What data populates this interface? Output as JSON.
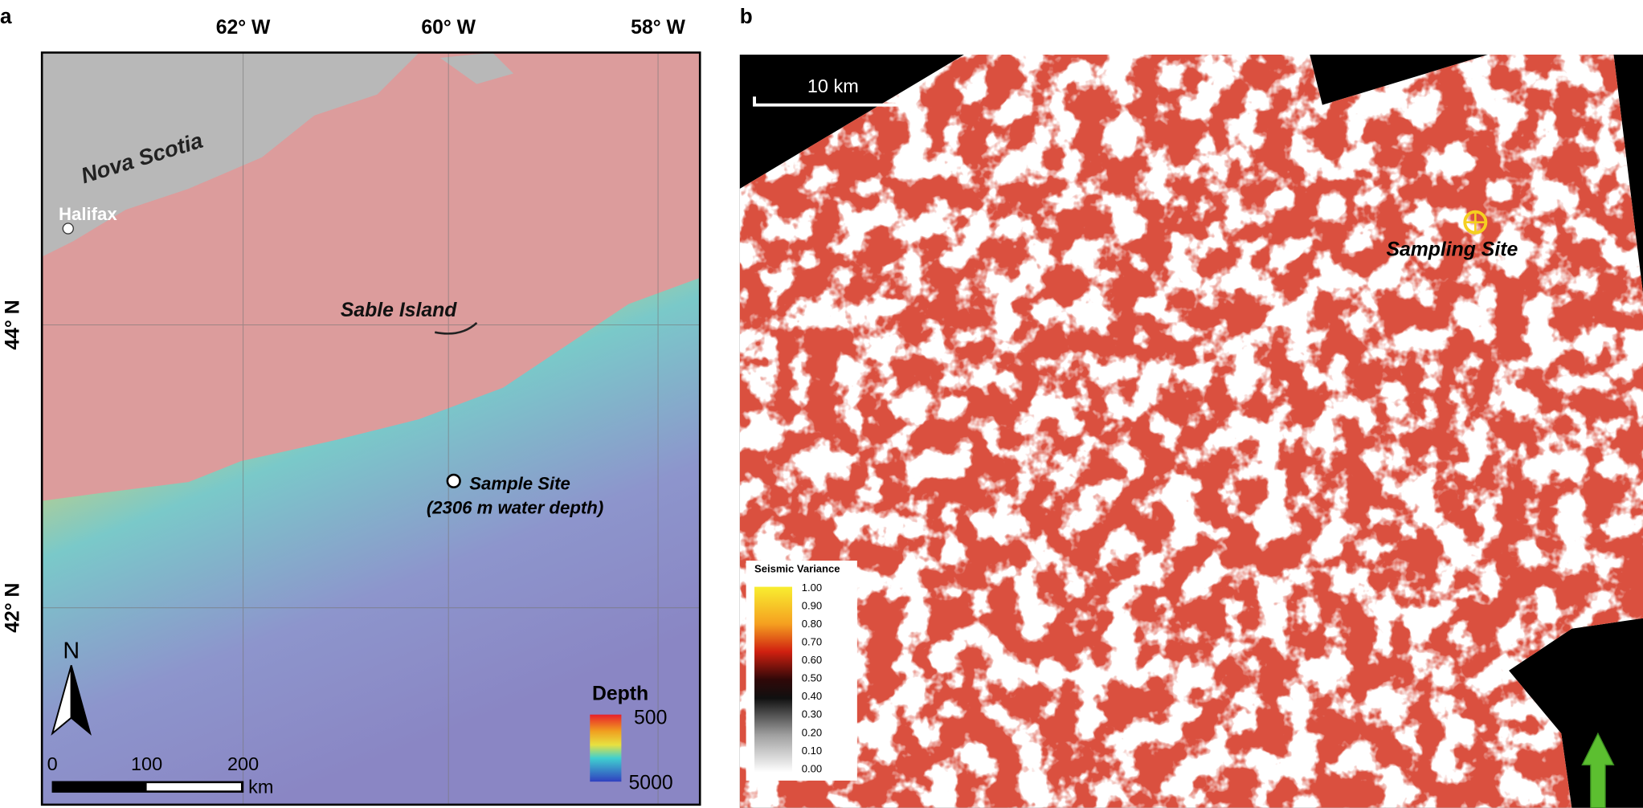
{
  "panel_a": {
    "label": "a",
    "lon_labels": [
      "62° W",
      "60° W",
      "58° W"
    ],
    "lat_labels": [
      "44° N",
      "42° N"
    ],
    "places": [
      "Nova Scotia",
      "Halifax",
      "Sable Island"
    ],
    "sample_site": "Sample Site",
    "sample_depth": "(2306 m water depth)",
    "north": "N",
    "scale_labels": [
      "0",
      "100",
      "200"
    ],
    "scale_unit": "km",
    "depth_title": "Depth",
    "depth_labels": [
      "500",
      "5000"
    ]
  },
  "panel_b": {
    "label": "b",
    "scale": "10 km",
    "site": "Sampling Site",
    "legend_title": "Seismic Variance",
    "legend_labels": [
      "1.00",
      "0.90",
      "0.80",
      "0.70",
      "0.60",
      "0.50",
      "0.40",
      "0.30",
      "0.20",
      "0.10",
      "0.00"
    ],
    "north": "N"
  }
}
